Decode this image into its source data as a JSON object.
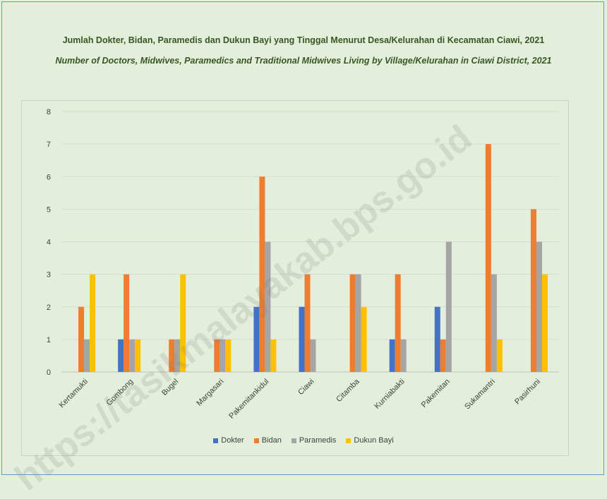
{
  "chart_data": {
    "type": "bar",
    "title": "Jumlah Dokter, Bidan, Paramedis dan Dukun Bayi yang Tinggal Menurut Desa/Kelurahan di Kecamatan Ciawi, 2021",
    "subtitle": "Number of Doctors, Midwives, Paramedics and Traditional Midwives Living by Village/Kelurahan in Ciawi District, 2021",
    "xlabel": "",
    "ylabel": "",
    "ylim": [
      0,
      8
    ],
    "yticks": [
      0,
      1,
      2,
      3,
      4,
      5,
      6,
      7,
      8
    ],
    "grid": true,
    "legend_position": "bottom",
    "categories": [
      "Kertamukti",
      "Gombong",
      "Bugel",
      "Margasari",
      "Pakemitankidul",
      "Ciawi",
      "Citamba",
      "Kurniabakti",
      "Pakemitan",
      "Sukamantri",
      "Pasirhuni"
    ],
    "series": [
      {
        "name": "Dokter",
        "color": "#4472c4",
        "values": [
          0,
          1,
          0,
          0,
          2,
          2,
          0,
          1,
          2,
          0,
          0
        ]
      },
      {
        "name": "Bidan",
        "color": "#ed7d31",
        "values": [
          2,
          3,
          1,
          1,
          6,
          3,
          3,
          3,
          1,
          7,
          5
        ]
      },
      {
        "name": "Paramedis",
        "color": "#a5a5a5",
        "values": [
          1,
          1,
          1,
          1,
          4,
          1,
          3,
          1,
          4,
          3,
          4
        ]
      },
      {
        "name": "Dukun Bayi",
        "color": "#ffc000",
        "values": [
          3,
          1,
          3,
          1,
          1,
          0,
          2,
          0,
          0,
          1,
          3
        ]
      }
    ]
  },
  "watermark": "https://tasikmalayakab.bps.go.id"
}
